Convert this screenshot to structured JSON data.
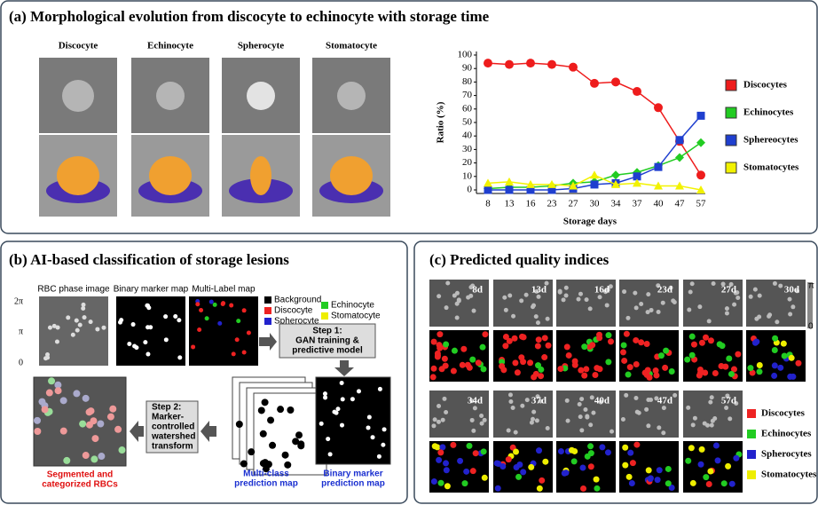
{
  "panel_a": {
    "title": "(a) Morphological evolution from discocyte to echinocyte with storage time",
    "cells": [
      "Discocyte",
      "Echinocyte",
      "Spherocyte",
      "Stomatocyte"
    ]
  },
  "chart_data": {
    "type": "line",
    "x_label": "Storage days",
    "y_label": "Ratio (%)",
    "categories": [
      "8",
      "13",
      "16",
      "23",
      "27",
      "30",
      "34",
      "37",
      "40",
      "47",
      "57"
    ],
    "ylim": [
      0,
      100
    ],
    "yticks": [
      0,
      10,
      20,
      30,
      40,
      50,
      60,
      70,
      80,
      90,
      100
    ],
    "grid": false,
    "series": [
      {
        "name": "Discocytes",
        "color": "#ee1c1c",
        "values": [
          94,
          93,
          94,
          93,
          91,
          79,
          80,
          73,
          61,
          36,
          11
        ]
      },
      {
        "name": "Echinocytes",
        "color": "#22cc22",
        "values": [
          1,
          2,
          2,
          3,
          5,
          6,
          11,
          13,
          18,
          24,
          35
        ]
      },
      {
        "name": "Sphereocytes",
        "color": "#1f3fcf",
        "values": [
          0,
          0,
          0,
          0,
          1,
          4,
          5,
          10,
          17,
          37,
          55
        ]
      },
      {
        "name": "Stomatocytes",
        "color": "#f2f200",
        "values": [
          5,
          6,
          4,
          4,
          3,
          11,
          4,
          5,
          3,
          3,
          0
        ]
      }
    ]
  },
  "panel_b": {
    "title": "(b) AI-based classification of storage lesions",
    "image_labels": [
      "RBC phase image",
      "Binary marker map",
      "Multi-Label map"
    ],
    "scale": [
      "2π",
      "π",
      "0"
    ],
    "legend": [
      "Background",
      "Discocyte",
      "Spherocyte",
      "Echinocyte",
      "Stomatocyte"
    ],
    "step1": [
      "Step 1:",
      "GAN training &",
      "predictive model"
    ],
    "step2": [
      "Step 2:",
      "Marker-",
      "controlled",
      "watershed",
      "transform"
    ],
    "segmented": [
      "Segmented and",
      "categorized RBCs"
    ],
    "multi_class": [
      "Multi-class",
      "prediction map"
    ],
    "binary": [
      "Binary marker",
      "prediction map"
    ]
  },
  "panel_c": {
    "title": "(c) Predicted quality indices",
    "days": [
      "8d",
      "13d",
      "16d",
      "23d",
      "27d",
      "30d",
      "34d",
      "37d",
      "40d",
      "47d",
      "57d"
    ],
    "scale": [
      "π",
      "0"
    ],
    "legend": [
      "Discocytes",
      "Echinocytes",
      "Spherocytes",
      "Stomatocytes"
    ]
  }
}
